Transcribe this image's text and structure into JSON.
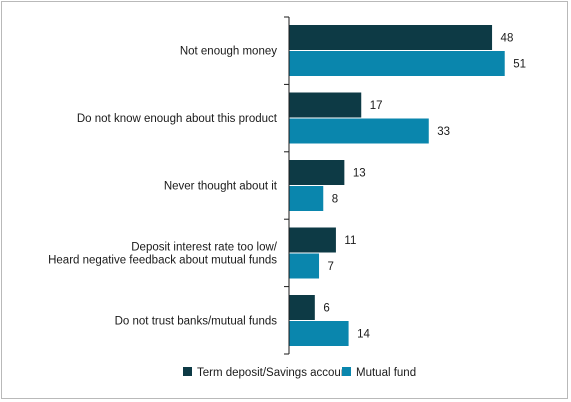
{
  "chart_data": {
    "type": "bar",
    "orientation": "horizontal",
    "categories": [
      [
        "Not enough money"
      ],
      [
        "Do not know enough about this product"
      ],
      [
        "Never thought about it"
      ],
      [
        "Deposit interest rate too low/",
        "Heard negative feedback about mutual funds"
      ],
      [
        "Do not trust banks/mutual funds"
      ]
    ],
    "series": [
      {
        "name": "Term deposit/Savings account",
        "values": [
          48,
          17,
          13,
          11,
          6
        ],
        "color": "#0d3a45"
      },
      {
        "name": "Mutual fund",
        "values": [
          51,
          33,
          8,
          7,
          14
        ],
        "color": "#0a86ad"
      }
    ],
    "xlim": [
      0,
      56
    ],
    "data_labels": true,
    "grid": false,
    "legend_position": "bottom"
  }
}
